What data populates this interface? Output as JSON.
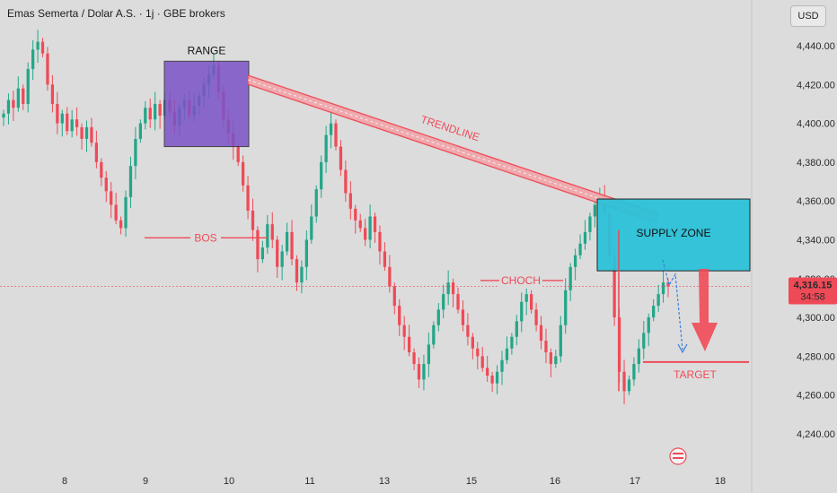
{
  "header": {
    "title": "Emas Semerta / Dolar A.S. · 1j · GBE brokers",
    "currency_button": "USD"
  },
  "colors": {
    "up": "#22a688",
    "down": "#ef4a57",
    "range_box": "#7b53c8",
    "supply_box": "#2cc2d9",
    "annotation_red": "#ef4a57",
    "dashed_blue": "#3a7fe0",
    "price_tag": "#ef4a57"
  },
  "chart_data": {
    "type": "candlestick",
    "title": "Emas Semerta / Dolar A.S. · 1j · GBE brokers",
    "currency": "USD",
    "ylim": [
      4228,
      4452
    ],
    "y_ticks": [
      "4,440.00",
      "4,420.00",
      "4,400.00",
      "4,380.00",
      "4,360.00",
      "4,340.00",
      "4,320.00",
      "4,300.00",
      "4,280.00",
      "4,260.00",
      "4,240.00"
    ],
    "y_tick_values": [
      4440,
      4420,
      4400,
      4380,
      4360,
      4340,
      4320,
      4300,
      4280,
      4260,
      4240
    ],
    "x_ticks": [
      "8",
      "9",
      "10",
      "11",
      "13",
      "15",
      "16",
      "17",
      "18"
    ],
    "last_price": "4,316.15",
    "countdown": "34:58",
    "series_close": [
      4405,
      4412,
      4408,
      4418,
      4410,
      4428,
      4438,
      4442,
      4436,
      4420,
      4410,
      4400,
      4405,
      4396,
      4402,
      4398,
      4392,
      4398,
      4390,
      4380,
      4372,
      4365,
      4358,
      4350,
      4346,
      4362,
      4378,
      4392,
      4400,
      4408,
      4402,
      4410,
      4404,
      4412,
      4406,
      4399,
      4408,
      4412,
      4404,
      4409,
      4414,
      4420,
      4425,
      4430,
      4416,
      4402,
      4395,
      4388,
      4380,
      4368,
      4355,
      4345,
      4330,
      4336,
      4348,
      4340,
      4326,
      4334,
      4344,
      4330,
      4318,
      4326,
      4340,
      4352,
      4366,
      4380,
      4394,
      4400,
      4388,
      4376,
      4364,
      4356,
      4350,
      4346,
      4340,
      4352,
      4344,
      4334,
      4326,
      4316,
      4306,
      4296,
      4290,
      4282,
      4276,
      4268,
      4276,
      4286,
      4296,
      4304,
      4312,
      4318,
      4312,
      4304,
      4296,
      4290,
      4284,
      4280,
      4274,
      4270,
      4266,
      4272,
      4278,
      4284,
      4290,
      4298,
      4308,
      4312,
      4304,
      4296,
      4288,
      4282,
      4276,
      4280,
      4296,
      4314,
      4326,
      4332,
      4338,
      4344,
      4352,
      4358,
      4362,
      4354,
      4332,
      4300,
      4272,
      4262,
      4268,
      4276,
      4284,
      4292,
      4300,
      4306,
      4312,
      4318,
      4316
    ],
    "annotations": [
      "RANGE",
      "TRENDLINE",
      "BOS",
      "CHOCH",
      "SUPPLY ZONE",
      "TARGET"
    ],
    "levels": {
      "range_box": [
        4388,
        4432
      ],
      "supply_zone": [
        4324,
        4361
      ],
      "bos": 4341,
      "choch": 4319,
      "target": 4277
    }
  }
}
